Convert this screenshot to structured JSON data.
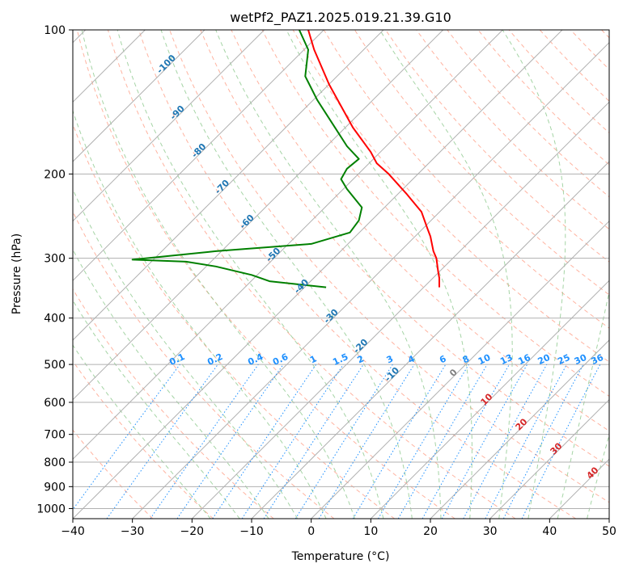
{
  "chart_data": {
    "type": "line",
    "subtype": "skew-t log-p diagram",
    "title": "wetPf2_PAZ1.2025.019.21.39.G10",
    "xlabel": "Temperature (°C)",
    "ylabel": "Pressure (hPa)",
    "xlim": [
      -40,
      50
    ],
    "ylim": [
      1050,
      100
    ],
    "y_scale": "log",
    "grid": true,
    "x_ticks": [
      "−40",
      "−30",
      "−20",
      "−10",
      "0",
      "10",
      "20",
      "30",
      "40",
      "50"
    ],
    "y_ticks": [
      "100",
      "200",
      "300",
      "400",
      "500",
      "600",
      "700",
      "800",
      "900",
      "1000"
    ],
    "isotherm_labels": [
      "-100",
      "-90",
      "-80",
      "-70",
      "-60",
      "-50",
      "-40",
      "-30",
      "-20",
      "-10"
    ],
    "mixing_ratio_labels": [
      "0.1",
      "0.2",
      "0.4",
      "0.6",
      "1",
      "1.5",
      "2",
      "3",
      "4",
      "6",
      "8",
      "10",
      "13",
      "16",
      "20",
      "25",
      "30",
      "36"
    ],
    "moist_adiabat_labels": [
      "0",
      "10",
      "20",
      "30",
      "40"
    ],
    "colors": {
      "temperature": "#ff0000",
      "dewpoint": "#008000",
      "isotherm_labels": "#1f77b4",
      "mixing_ratio": "#1e90ff",
      "moist_labels_zero": "#808080",
      "moist_labels": "#d62728",
      "dry_adiabats": "#ff9a80",
      "moist_adiabats": "#8fc98f"
    },
    "series": [
      {
        "id": "temperature",
        "x": [
          -0.5,
          0.5,
          3,
          7,
          10,
          11,
          13,
          16,
          18.5,
          19.5,
          20,
          20.5,
          21,
          21.3,
          21.5,
          21.5,
          21.5
        ],
        "y": [
          100,
          110,
          130,
          160,
          180,
          190,
          200,
          220,
          240,
          260,
          270,
          290,
          300,
          320,
          330,
          340,
          345
        ]
      },
      {
        "id": "dewpoint",
        "x": [
          -2,
          -0.5,
          -1,
          1,
          4,
          6,
          8,
          6,
          5,
          6,
          8.5,
          8,
          6.5,
          0,
          -16,
          -30,
          -21,
          -16,
          -10,
          -7,
          2.5
        ],
        "y": [
          100,
          110,
          125,
          140,
          160,
          175,
          186,
          195,
          205,
          215,
          235,
          250,
          265,
          280,
          290,
          302,
          305,
          312,
          325,
          335,
          345
        ]
      }
    ]
  }
}
